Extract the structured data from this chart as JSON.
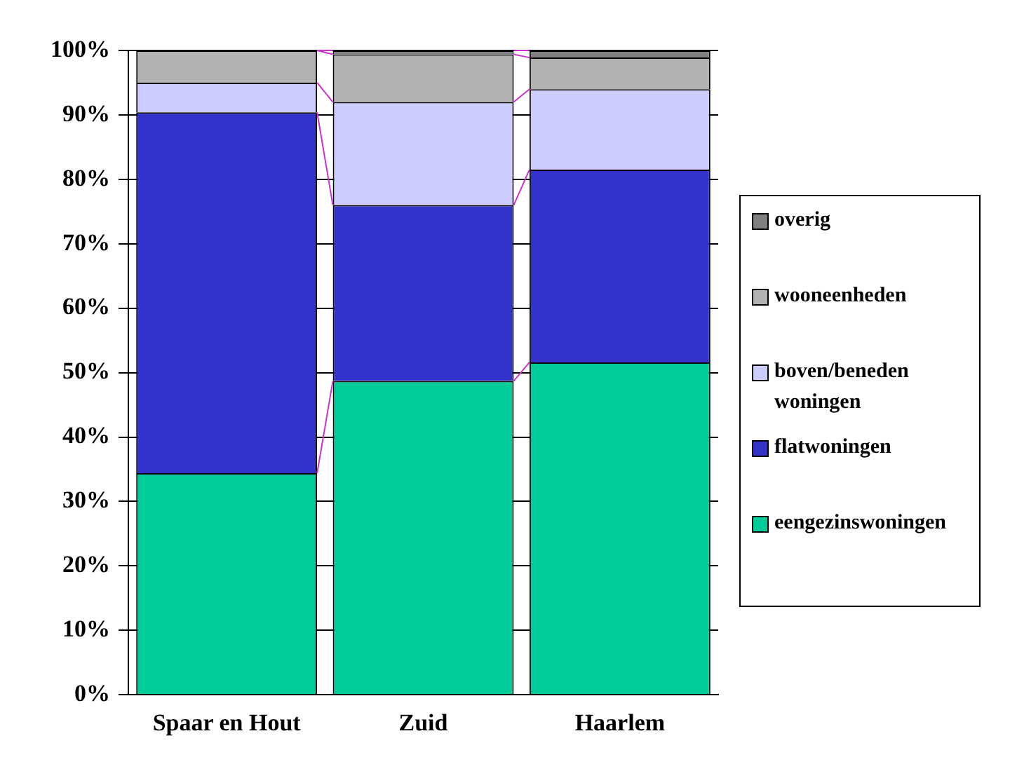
{
  "chart_data": {
    "type": "bar",
    "stacked": true,
    "categories": [
      "Spaar en Hout",
      "Zuid",
      "Haarlem"
    ],
    "series": [
      {
        "name": "eengezinswoningen",
        "color": "#00cc99",
        "values": [
          34.4,
          48.7,
          51.6
        ]
      },
      {
        "name": "flatwoningen",
        "color": "#3333cc",
        "values": [
          56.0,
          27.3,
          29.9
        ]
      },
      {
        "name": "boven/beneden woningen",
        "color": "#ccccff",
        "values": [
          4.6,
          16.0,
          12.5
        ]
      },
      {
        "name": "wooneenheden",
        "color": "#b2b2b2",
        "values": [
          5.0,
          7.4,
          4.9
        ]
      },
      {
        "name": "overig",
        "color": "#808080",
        "values": [
          0,
          0.6,
          1.1
        ]
      }
    ],
    "ylim": [
      0,
      100
    ],
    "yticks": [
      {
        "value": 0,
        "label": "0%"
      },
      {
        "value": 10,
        "label": "10%"
      },
      {
        "value": 20,
        "label": "20%"
      },
      {
        "value": 30,
        "label": "30%"
      },
      {
        "value": 40,
        "label": "40%"
      },
      {
        "value": 50,
        "label": "50%"
      },
      {
        "value": 60,
        "label": "60%"
      },
      {
        "value": 70,
        "label": "70%"
      },
      {
        "value": 80,
        "label": "80%"
      },
      {
        "value": 90,
        "label": "90%"
      },
      {
        "value": 100,
        "label": "100%"
      }
    ],
    "grid": "y",
    "legend": "right"
  }
}
